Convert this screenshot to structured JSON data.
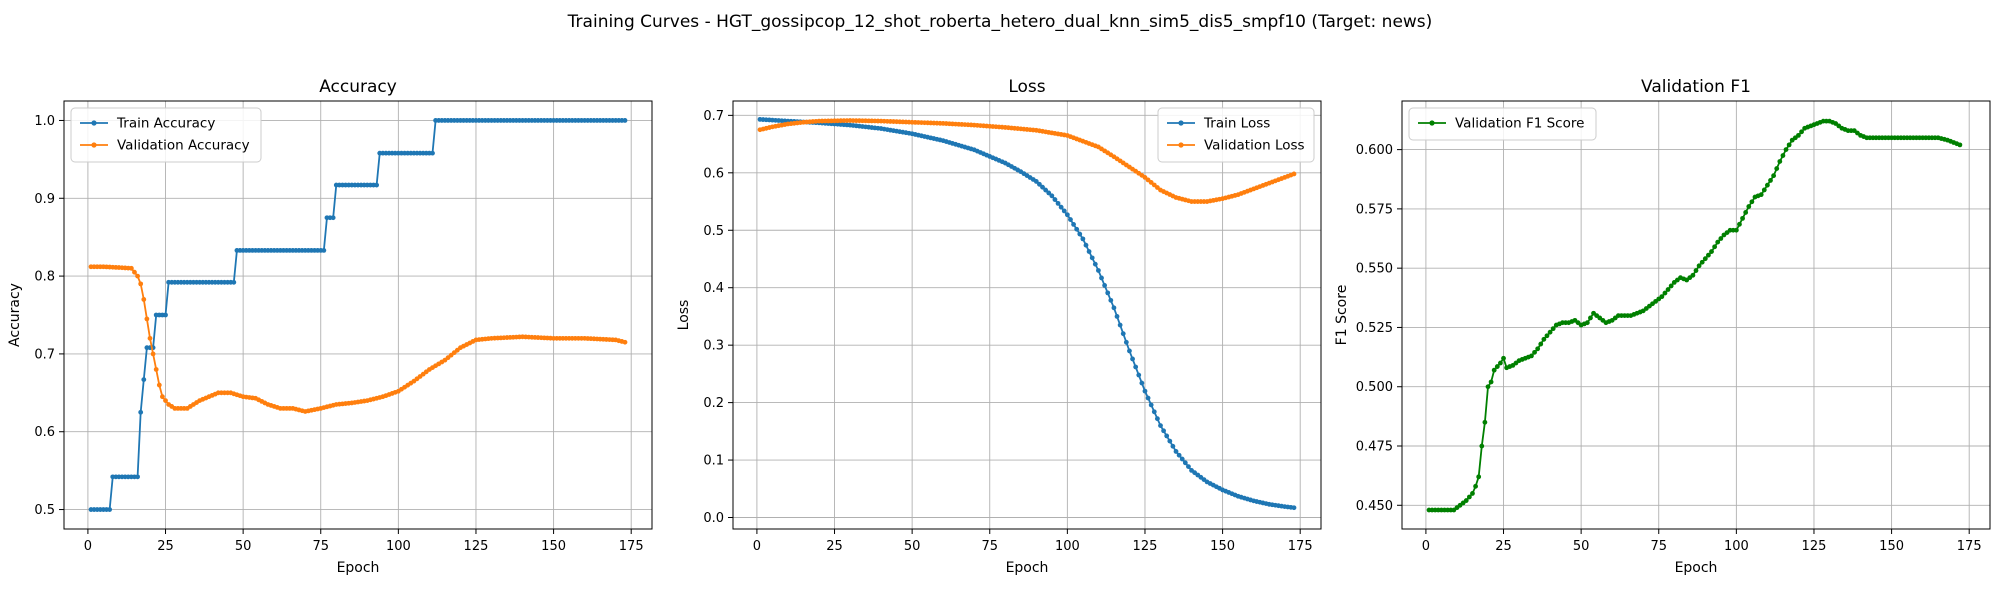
{
  "figure": {
    "title": "Training Curves - HGT_gossipcop_12_shot_roberta_hetero_dual_knn_sim5_dis5_smpf10 (Target: news)"
  },
  "colors": {
    "train": "#1f77b4",
    "val": "#ff7f0e",
    "f1": "#008000"
  },
  "chart_data": [
    {
      "type": "line",
      "title": "Accuracy",
      "xlabel": "Epoch",
      "ylabel": "Accuracy",
      "xlim": [
        -7.7,
        181.7
      ],
      "ylim": [
        0.475,
        1.025
      ],
      "xticks": [
        0,
        25,
        50,
        75,
        100,
        125,
        150,
        175
      ],
      "yticks": [
        0.5,
        0.6,
        0.7,
        0.8,
        0.9,
        1.0
      ],
      "ytick_labels": [
        "0.5",
        "0.6",
        "0.7",
        "0.8",
        "0.9",
        "1.0"
      ],
      "grid": true,
      "legend": "upper-left",
      "series": [
        {
          "name": "Train Accuracy",
          "color": "#1f77b4",
          "steps": [
            [
              1,
              0.5
            ],
            [
              8,
              0.542
            ],
            [
              17,
              0.625
            ],
            [
              18,
              0.667
            ],
            [
              19,
              0.708
            ],
            [
              22,
              0.75
            ],
            [
              26,
              0.792
            ],
            [
              48,
              0.833
            ],
            [
              77,
              0.875
            ],
            [
              80,
              0.917
            ],
            [
              94,
              0.958
            ],
            [
              112,
              1.0
            ]
          ],
          "x_end": 173
        },
        {
          "name": "Validation Accuracy",
          "color": "#ff7f0e",
          "points": [
            [
              1,
              0.812
            ],
            [
              5,
              0.812
            ],
            [
              10,
              0.811
            ],
            [
              14,
              0.81
            ],
            [
              16,
              0.8
            ],
            [
              17,
              0.79
            ],
            [
              18,
              0.77
            ],
            [
              19,
              0.745
            ],
            [
              20,
              0.72
            ],
            [
              21,
              0.7
            ],
            [
              22,
              0.68
            ],
            [
              23,
              0.66
            ],
            [
              24,
              0.645
            ],
            [
              26,
              0.635
            ],
            [
              28,
              0.63
            ],
            [
              32,
              0.63
            ],
            [
              36,
              0.64
            ],
            [
              42,
              0.65
            ],
            [
              46,
              0.65
            ],
            [
              50,
              0.645
            ],
            [
              54,
              0.643
            ],
            [
              58,
              0.635
            ],
            [
              62,
              0.63
            ],
            [
              66,
              0.63
            ],
            [
              70,
              0.626
            ],
            [
              75,
              0.63
            ],
            [
              80,
              0.635
            ],
            [
              85,
              0.637
            ],
            [
              90,
              0.64
            ],
            [
              95,
              0.645
            ],
            [
              100,
              0.652
            ],
            [
              105,
              0.665
            ],
            [
              110,
              0.68
            ],
            [
              115,
              0.692
            ],
            [
              120,
              0.708
            ],
            [
              125,
              0.718
            ],
            [
              130,
              0.72
            ],
            [
              135,
              0.721
            ],
            [
              140,
              0.722
            ],
            [
              150,
              0.72
            ],
            [
              160,
              0.72
            ],
            [
              170,
              0.718
            ],
            [
              173,
              0.715
            ]
          ]
        }
      ]
    },
    {
      "type": "line",
      "title": "Loss",
      "xlabel": "Epoch",
      "ylabel": "Loss",
      "xlim": [
        -7.7,
        181.7
      ],
      "ylim": [
        -0.02,
        0.725
      ],
      "xticks": [
        0,
        25,
        50,
        75,
        100,
        125,
        150,
        175
      ],
      "yticks": [
        0.0,
        0.1,
        0.2,
        0.3,
        0.4,
        0.5,
        0.6,
        0.7
      ],
      "ytick_labels": [
        "0.0",
        "0.1",
        "0.2",
        "0.3",
        "0.4",
        "0.5",
        "0.6",
        "0.7"
      ],
      "grid": true,
      "legend": "upper-right",
      "series": [
        {
          "name": "Train Loss",
          "color": "#1f77b4",
          "points": [
            [
              1,
              0.693
            ],
            [
              10,
              0.69
            ],
            [
              20,
              0.687
            ],
            [
              30,
              0.683
            ],
            [
              40,
              0.677
            ],
            [
              50,
              0.668
            ],
            [
              60,
              0.656
            ],
            [
              70,
              0.64
            ],
            [
              80,
              0.617
            ],
            [
              85,
              0.602
            ],
            [
              90,
              0.585
            ],
            [
              95,
              0.56
            ],
            [
              100,
              0.527
            ],
            [
              105,
              0.485
            ],
            [
              110,
              0.43
            ],
            [
              115,
              0.365
            ],
            [
              120,
              0.29
            ],
            [
              125,
              0.22
            ],
            [
              130,
              0.16
            ],
            [
              135,
              0.115
            ],
            [
              140,
              0.082
            ],
            [
              145,
              0.062
            ],
            [
              150,
              0.048
            ],
            [
              155,
              0.037
            ],
            [
              160,
              0.029
            ],
            [
              165,
              0.023
            ],
            [
              170,
              0.019
            ],
            [
              173,
              0.017
            ]
          ]
        },
        {
          "name": "Validation Loss",
          "color": "#ff7f0e",
          "points": [
            [
              1,
              0.675
            ],
            [
              5,
              0.68
            ],
            [
              10,
              0.685
            ],
            [
              15,
              0.688
            ],
            [
              20,
              0.69
            ],
            [
              30,
              0.691
            ],
            [
              40,
              0.69
            ],
            [
              50,
              0.688
            ],
            [
              60,
              0.686
            ],
            [
              70,
              0.683
            ],
            [
              80,
              0.679
            ],
            [
              90,
              0.674
            ],
            [
              100,
              0.665
            ],
            [
              110,
              0.645
            ],
            [
              115,
              0.628
            ],
            [
              120,
              0.61
            ],
            [
              125,
              0.592
            ],
            [
              130,
              0.57
            ],
            [
              135,
              0.557
            ],
            [
              140,
              0.55
            ],
            [
              145,
              0.55
            ],
            [
              150,
              0.555
            ],
            [
              155,
              0.562
            ],
            [
              160,
              0.572
            ],
            [
              165,
              0.582
            ],
            [
              170,
              0.592
            ],
            [
              173,
              0.598
            ]
          ]
        }
      ]
    },
    {
      "type": "line",
      "title": "Validation F1",
      "xlabel": "Epoch",
      "ylabel": "F1 Score",
      "xlim": [
        -7.7,
        181.7
      ],
      "ylim": [
        0.44,
        0.6205
      ],
      "xticks": [
        0,
        25,
        50,
        75,
        100,
        125,
        150,
        175
      ],
      "yticks": [
        0.45,
        0.475,
        0.5,
        0.525,
        0.55,
        0.575,
        0.6
      ],
      "ytick_labels": [
        "0.450",
        "0.475",
        "0.500",
        "0.525",
        "0.550",
        "0.575",
        "0.600"
      ],
      "grid": true,
      "legend": "upper-left",
      "series": [
        {
          "name": "Validation F1 Score",
          "color": "#008000",
          "points": [
            [
              1,
              0.448
            ],
            [
              5,
              0.448
            ],
            [
              9,
              0.448
            ],
            [
              11,
              0.45
            ],
            [
              13,
              0.452
            ],
            [
              15,
              0.455
            ],
            [
              16,
              0.458
            ],
            [
              17,
              0.462
            ],
            [
              18,
              0.475
            ],
            [
              19,
              0.485
            ],
            [
              20,
              0.5
            ],
            [
              21,
              0.502
            ],
            [
              22,
              0.507
            ],
            [
              24,
              0.51
            ],
            [
              25,
              0.512
            ],
            [
              26,
              0.508
            ],
            [
              28,
              0.509
            ],
            [
              30,
              0.511
            ],
            [
              32,
              0.512
            ],
            [
              34,
              0.513
            ],
            [
              36,
              0.516
            ],
            [
              38,
              0.52
            ],
            [
              40,
              0.523
            ],
            [
              42,
              0.526
            ],
            [
              44,
              0.527
            ],
            [
              46,
              0.527
            ],
            [
              48,
              0.528
            ],
            [
              50,
              0.526
            ],
            [
              52,
              0.527
            ],
            [
              54,
              0.531
            ],
            [
              56,
              0.529
            ],
            [
              58,
              0.527
            ],
            [
              60,
              0.528
            ],
            [
              62,
              0.53
            ],
            [
              64,
              0.53
            ],
            [
              66,
              0.53
            ],
            [
              68,
              0.531
            ],
            [
              70,
              0.532
            ],
            [
              72,
              0.534
            ],
            [
              74,
              0.536
            ],
            [
              76,
              0.538
            ],
            [
              78,
              0.541
            ],
            [
              80,
              0.544
            ],
            [
              82,
              0.546
            ],
            [
              84,
              0.545
            ],
            [
              86,
              0.547
            ],
            [
              88,
              0.551
            ],
            [
              90,
              0.554
            ],
            [
              92,
              0.557
            ],
            [
              94,
              0.561
            ],
            [
              96,
              0.564
            ],
            [
              98,
              0.566
            ],
            [
              100,
              0.566
            ],
            [
              102,
              0.571
            ],
            [
              104,
              0.576
            ],
            [
              106,
              0.58
            ],
            [
              108,
              0.581
            ],
            [
              110,
              0.585
            ],
            [
              112,
              0.589
            ],
            [
              114,
              0.595
            ],
            [
              116,
              0.6
            ],
            [
              118,
              0.604
            ],
            [
              120,
              0.606
            ],
            [
              122,
              0.609
            ],
            [
              124,
              0.61
            ],
            [
              126,
              0.611
            ],
            [
              128,
              0.612
            ],
            [
              130,
              0.612
            ],
            [
              132,
              0.611
            ],
            [
              134,
              0.609
            ],
            [
              136,
              0.608
            ],
            [
              138,
              0.608
            ],
            [
              140,
              0.606
            ],
            [
              142,
              0.605
            ],
            [
              146,
              0.605
            ],
            [
              150,
              0.605
            ],
            [
              155,
              0.605
            ],
            [
              160,
              0.605
            ],
            [
              165,
              0.605
            ],
            [
              168,
              0.604
            ],
            [
              170,
              0.603
            ],
            [
              172,
              0.602
            ]
          ]
        }
      ]
    }
  ]
}
